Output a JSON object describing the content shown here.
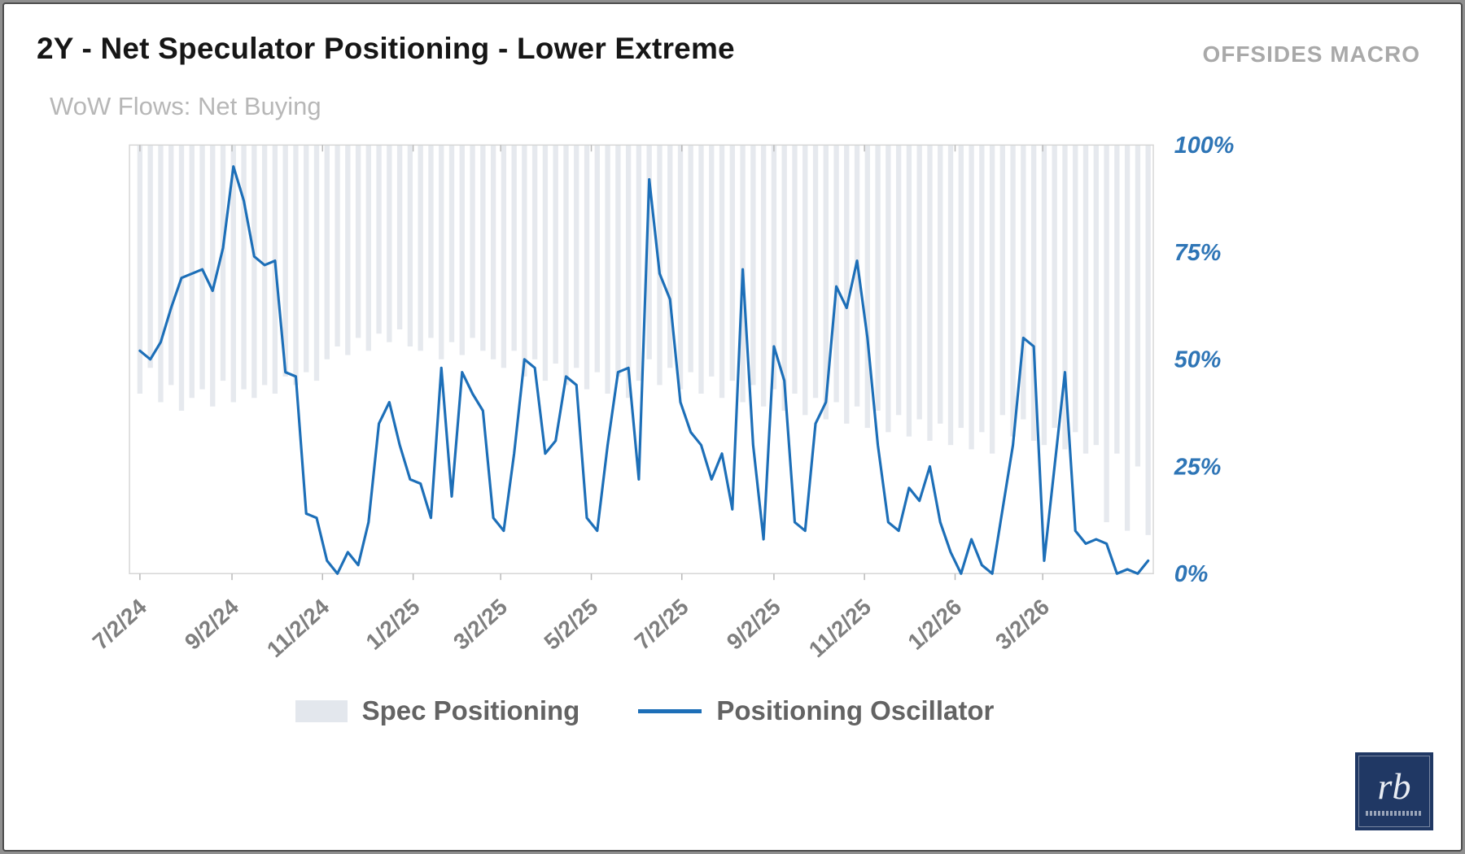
{
  "header": {
    "title": "2Y - Net Speculator Positioning - Lower Extreme",
    "brand": "OFFSIDES MACRO",
    "subtitle": "WoW Flows: Net Buying"
  },
  "legend": {
    "bars_label": "Spec Positioning",
    "line_label": "Positioning Oscillator"
  },
  "logo": {
    "monogram": "rb"
  },
  "chart_data": {
    "type": "line",
    "title": "2Y - Net Speculator Positioning - Lower Extreme",
    "subtitle": "WoW Flows: Net Buying",
    "x_unit": "weeks starting 7/2/24, weekly observations",
    "x_tick_labels": [
      "7/2/24",
      "9/2/24",
      "11/2/24",
      "1/2/25",
      "3/2/25",
      "5/2/25",
      "7/2/25",
      "9/2/25",
      "11/2/25",
      "1/2/26",
      "3/2/26"
    ],
    "x_tick_positions_weeks": [
      0,
      8.86,
      17.57,
      26.29,
      34.71,
      43.43,
      52.14,
      61.0,
      69.71,
      78.43,
      86.86
    ],
    "y_ticks": [
      0,
      25,
      50,
      75,
      100
    ],
    "y_tick_labels": [
      "0%",
      "25%",
      "50%",
      "75%",
      "100%"
    ],
    "ylim": [
      0,
      100
    ],
    "grid": false,
    "legend_position": "bottom",
    "series": [
      {
        "name": "Spec Positioning",
        "type": "bar",
        "orientation": "hanging-from-top",
        "note": "bars extend downward from 100% to the listed value",
        "values": [
          42,
          48,
          40,
          44,
          38,
          41,
          43,
          39,
          45,
          40,
          43,
          41,
          44,
          42,
          46,
          44,
          47,
          45,
          50,
          53,
          51,
          55,
          52,
          56,
          54,
          57,
          53,
          52,
          55,
          50,
          54,
          51,
          55,
          52,
          50,
          48,
          52,
          46,
          50,
          45,
          49,
          44,
          48,
          43,
          47,
          42,
          46,
          41,
          45,
          50,
          44,
          48,
          43,
          47,
          42,
          46,
          41,
          45,
          40,
          44,
          39,
          43,
          38,
          42,
          37,
          41,
          36,
          40,
          35,
          39,
          34,
          38,
          33,
          37,
          32,
          36,
          31,
          35,
          30,
          34,
          29,
          33,
          28,
          37,
          32,
          36,
          31,
          30,
          34,
          29,
          33,
          28,
          30,
          12,
          28,
          10,
          25,
          9
        ]
      },
      {
        "name": "Positioning Oscillator",
        "type": "line",
        "values": [
          52,
          50,
          54,
          62,
          69,
          70,
          71,
          66,
          76,
          95,
          87,
          74,
          72,
          73,
          47,
          46,
          14,
          13,
          3,
          0,
          5,
          2,
          12,
          35,
          40,
          30,
          22,
          21,
          13,
          48,
          18,
          47,
          42,
          38,
          13,
          10,
          28,
          50,
          48,
          28,
          31,
          46,
          44,
          13,
          10,
          30,
          47,
          48,
          22,
          92,
          70,
          64,
          40,
          33,
          30,
          22,
          28,
          15,
          71,
          30,
          8,
          53,
          45,
          12,
          10,
          35,
          40,
          67,
          62,
          73,
          55,
          30,
          12,
          10,
          20,
          17,
          25,
          12,
          5,
          0,
          8,
          2,
          0,
          15,
          30,
          55,
          53,
          3,
          25,
          47,
          10,
          7,
          8,
          7,
          0,
          1,
          0,
          3
        ]
      }
    ],
    "colors": {
      "bar": "#e6e9ee",
      "line": "#1d6fb8",
      "y_labels": "#2e75b6",
      "x_labels": "#7f7f7f",
      "plot_border": "#d6d6d6",
      "tick": "#b9b9b9"
    }
  }
}
